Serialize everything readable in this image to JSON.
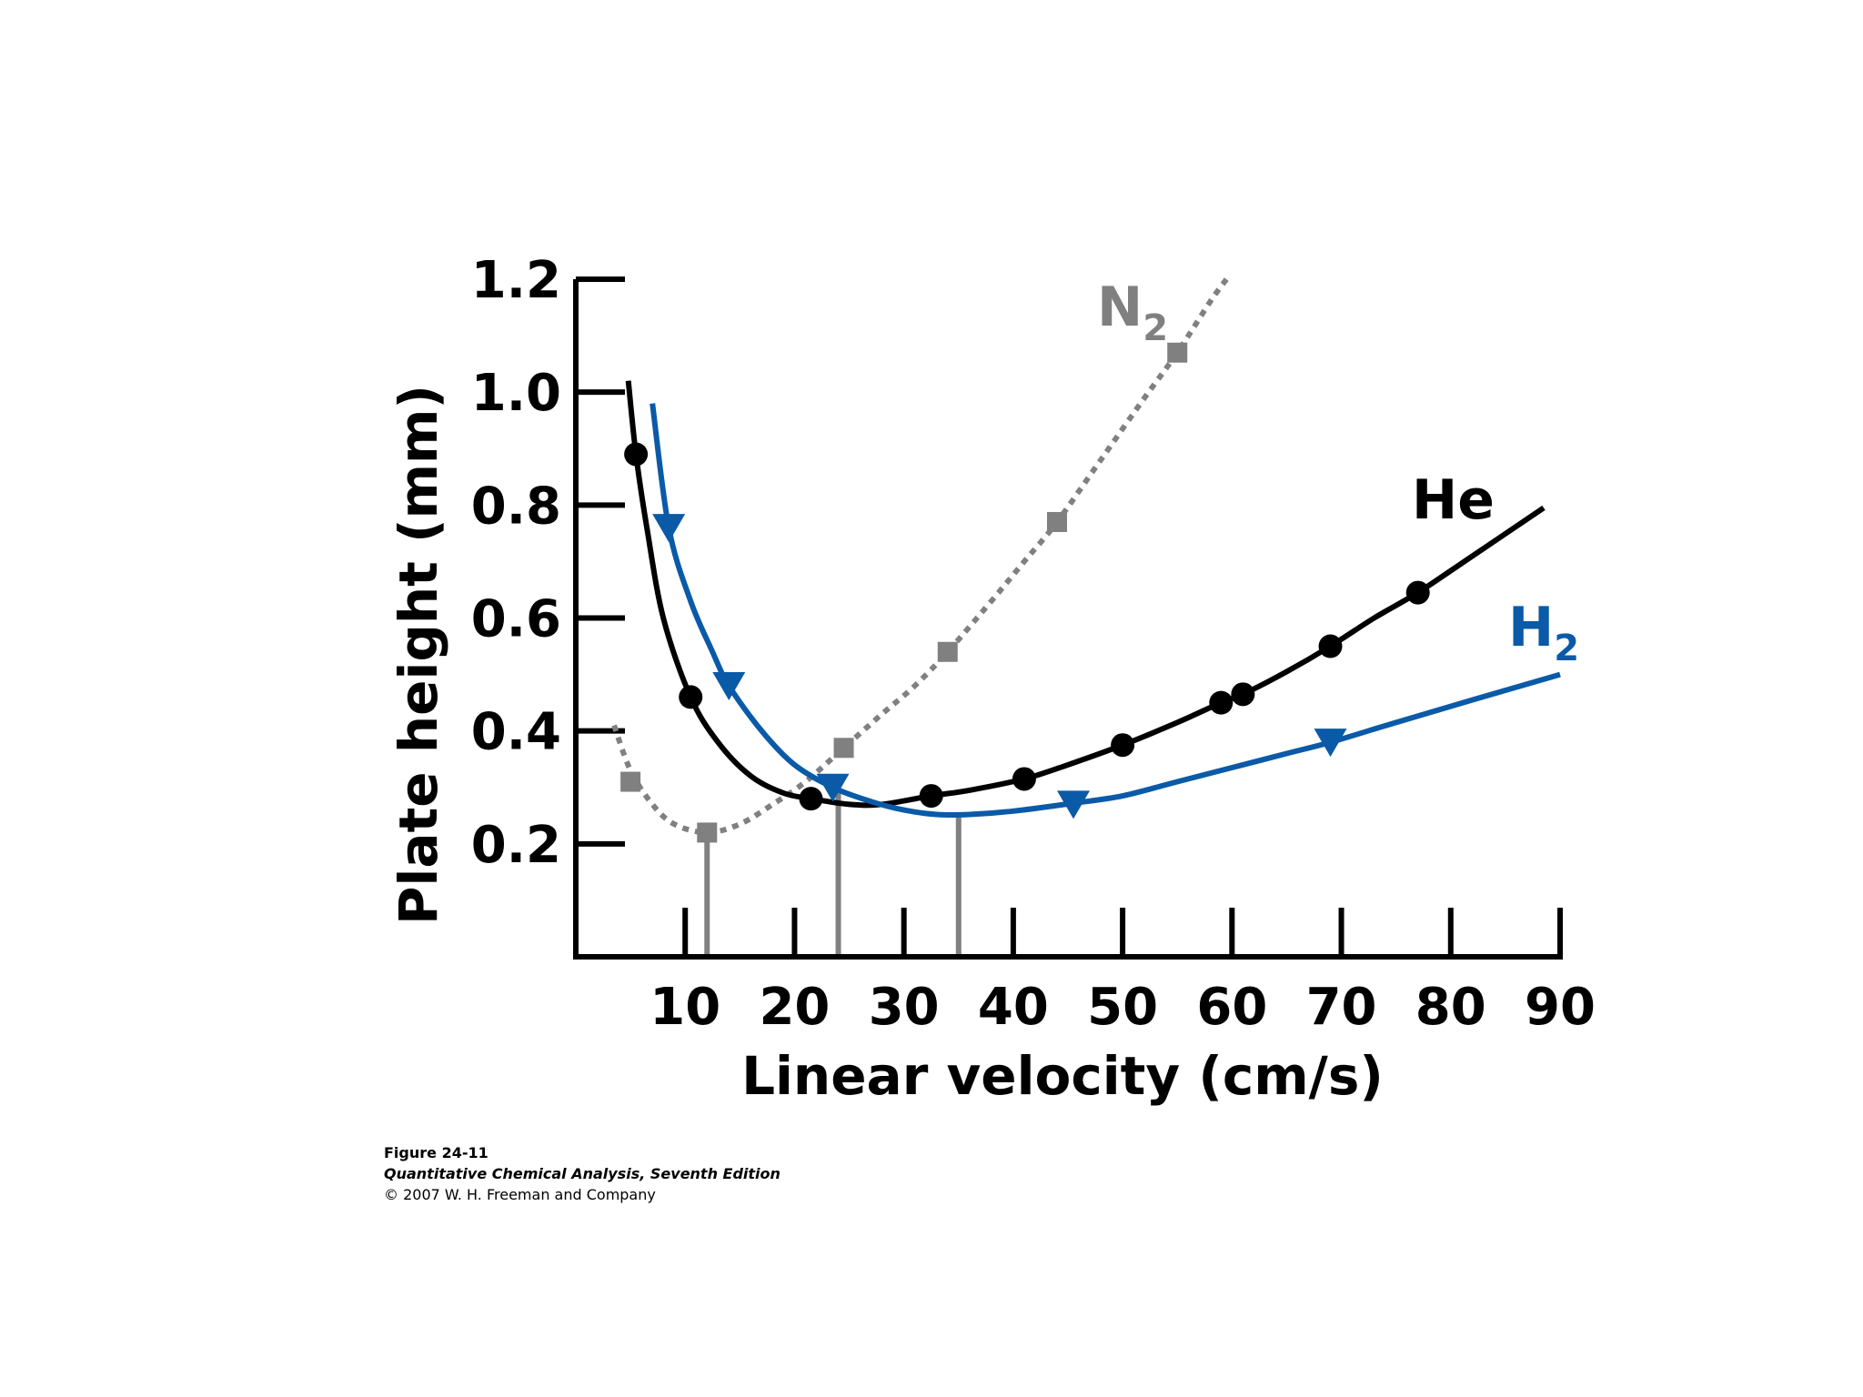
{
  "chart_data": {
    "type": "line",
    "xlabel": "Linear velocity (cm/s)",
    "ylabel": "Plate height (mm)",
    "xlim": [
      0,
      90
    ],
    "ylim": [
      0,
      1.2
    ],
    "x_ticks": [
      10,
      20,
      30,
      40,
      50,
      60,
      70,
      80,
      90
    ],
    "x_tick_labels": [
      "10",
      "20",
      "30",
      "40",
      "50",
      "60",
      "70",
      "80",
      "90"
    ],
    "y_ticks": [
      0.2,
      0.4,
      0.6,
      0.8,
      1.0,
      1.2
    ],
    "y_tick_labels": [
      "0.2",
      "0.4",
      "0.6",
      "0.8",
      "1.0",
      "1.2"
    ],
    "series": [
      {
        "name": "N",
        "name_subscript": "2",
        "color": "#808080",
        "line_style": "dotted",
        "marker": "square",
        "points": [
          [
            5,
            0.31
          ],
          [
            12,
            0.22
          ],
          [
            24.5,
            0.37
          ],
          [
            34,
            0.54
          ],
          [
            44,
            0.77
          ],
          [
            55,
            1.07
          ]
        ],
        "curve": [
          [
            3.5,
            0.41
          ],
          [
            5,
            0.33
          ],
          [
            7,
            0.27
          ],
          [
            9,
            0.235
          ],
          [
            12,
            0.22
          ],
          [
            15,
            0.235
          ],
          [
            18,
            0.27
          ],
          [
            21,
            0.31
          ],
          [
            24.5,
            0.37
          ],
          [
            28,
            0.43
          ],
          [
            31,
            0.48
          ],
          [
            34,
            0.54
          ],
          [
            38,
            0.63
          ],
          [
            41,
            0.7
          ],
          [
            44,
            0.77
          ],
          [
            48,
            0.88
          ],
          [
            52,
            0.99
          ],
          [
            55,
            1.07
          ],
          [
            58,
            1.16
          ],
          [
            59.5,
            1.2
          ]
        ]
      },
      {
        "name": "He",
        "color": "#000000",
        "line_style": "solid",
        "marker": "circle",
        "points": [
          [
            5.5,
            0.89
          ],
          [
            10.5,
            0.46
          ],
          [
            21.5,
            0.28
          ],
          [
            32.5,
            0.285
          ],
          [
            41,
            0.315
          ],
          [
            50,
            0.375
          ],
          [
            59,
            0.45
          ],
          [
            61,
            0.465
          ],
          [
            69,
            0.55
          ],
          [
            77,
            0.645
          ]
        ],
        "curve": [
          [
            4.8,
            1.02
          ],
          [
            5.5,
            0.89
          ],
          [
            6.5,
            0.76
          ],
          [
            8,
            0.6
          ],
          [
            10.5,
            0.46
          ],
          [
            13,
            0.38
          ],
          [
            16,
            0.32
          ],
          [
            19,
            0.29
          ],
          [
            21.5,
            0.28
          ],
          [
            25,
            0.27
          ],
          [
            28,
            0.27
          ],
          [
            32.5,
            0.285
          ],
          [
            36,
            0.295
          ],
          [
            41,
            0.315
          ],
          [
            45,
            0.34
          ],
          [
            50,
            0.375
          ],
          [
            55,
            0.415
          ],
          [
            59,
            0.45
          ],
          [
            61,
            0.465
          ],
          [
            65,
            0.505
          ],
          [
            69,
            0.55
          ],
          [
            73,
            0.6
          ],
          [
            77,
            0.645
          ],
          [
            82,
            0.71
          ],
          [
            88.5,
            0.795
          ]
        ]
      },
      {
        "name": "H",
        "name_subscript": "2",
        "color": "#0a5aa8",
        "line_style": "solid",
        "marker": "triangle-down",
        "points": [
          [
            8.5,
            0.76
          ],
          [
            14,
            0.48
          ],
          [
            23.5,
            0.3
          ],
          [
            45.5,
            0.27
          ],
          [
            69,
            0.38
          ]
        ],
        "curve": [
          [
            7,
            0.98
          ],
          [
            8.5,
            0.76
          ],
          [
            10.5,
            0.63
          ],
          [
            12.5,
            0.54
          ],
          [
            14,
            0.48
          ],
          [
            17,
            0.4
          ],
          [
            20,
            0.34
          ],
          [
            23.5,
            0.3
          ],
          [
            27,
            0.275
          ],
          [
            30,
            0.26
          ],
          [
            33,
            0.252
          ],
          [
            36,
            0.252
          ],
          [
            40,
            0.258
          ],
          [
            45.5,
            0.272
          ],
          [
            50,
            0.285
          ],
          [
            55,
            0.31
          ],
          [
            60,
            0.335
          ],
          [
            65,
            0.36
          ],
          [
            69,
            0.38
          ],
          [
            75,
            0.415
          ],
          [
            82,
            0.455
          ],
          [
            90,
            0.5
          ]
        ]
      }
    ],
    "optimum_markers": [
      {
        "x": 12,
        "y": 0.22,
        "color": "#808080"
      },
      {
        "x": 24,
        "y": 0.3,
        "color": "#808080"
      },
      {
        "x": 35,
        "y": 0.252,
        "color": "#808080"
      }
    ],
    "grid": false,
    "legend": "labels next to curves"
  },
  "caption": {
    "figure": "Figure 24-11",
    "book": "Quantitative Chemical Analysis, Seventh Edition",
    "copyright": "© 2007 W. H. Freeman and Company"
  }
}
